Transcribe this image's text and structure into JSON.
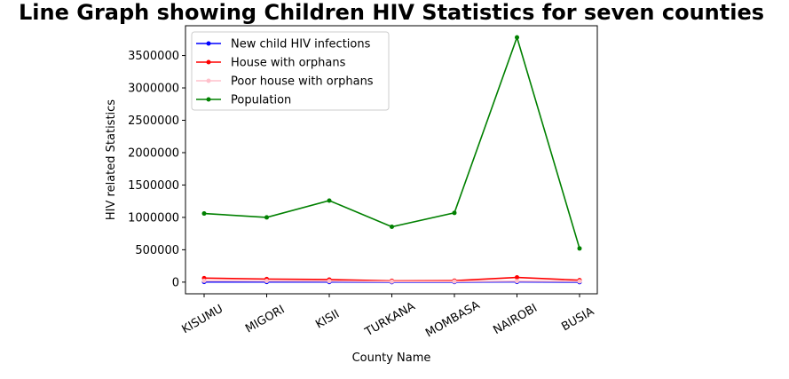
{
  "chart_data": {
    "type": "line",
    "title": "Line Graph showing Children HIV Statistics for seven counties",
    "xlabel": "County Name",
    "ylabel": "HIV related Statistics",
    "categories": [
      "KISUMU",
      "MIGORI",
      "KISII",
      "TURKANA",
      "MOMBASA",
      "NAIROBI",
      "BUSIA"
    ],
    "yticks": [
      0,
      500000,
      1000000,
      1500000,
      2000000,
      2500000,
      3000000,
      3500000
    ],
    "ylim": [
      -180000,
      3960000
    ],
    "grid": false,
    "legend_position": "upper-left",
    "series": [
      {
        "name": "New child HIV infections",
        "color": "#0000ff",
        "values": [
          3000,
          2500,
          2000,
          700,
          1200,
          3500,
          600
        ]
      },
      {
        "name": "House with orphans",
        "color": "#ff0000",
        "values": [
          62000,
          48000,
          40000,
          20000,
          23000,
          73000,
          30000
        ]
      },
      {
        "name": "Poor house with orphans",
        "color": "#ffc0cb",
        "values": [
          20000,
          18000,
          16000,
          9000,
          10000,
          16000,
          12000
        ]
      },
      {
        "name": "Population",
        "color": "#008000",
        "values": [
          1060000,
          1000000,
          1260000,
          855000,
          1070000,
          3780000,
          520000
        ]
      }
    ]
  }
}
